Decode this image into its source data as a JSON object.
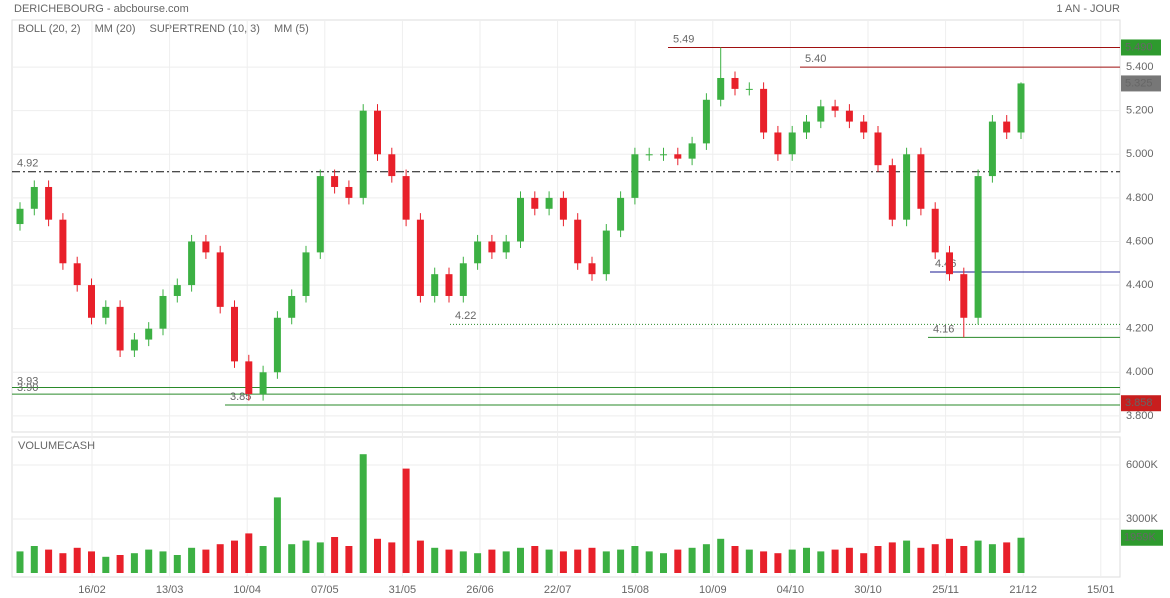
{
  "header": {
    "title": "DERICHEBOURG - abcbourse.com",
    "period": "1 AN - JOUR"
  },
  "chart_data": [
    {
      "type": "candlestick",
      "legend": [
        {
          "name": "BOLL (20, 2)",
          "color": "#f0a040"
        },
        {
          "name": "MM (20)",
          "color": "#d82020"
        },
        {
          "name": "SUPERTREND (10, 3)",
          "color": "#f4a0a8"
        },
        {
          "name": "MM (5)",
          "color": "#1a1aa0"
        }
      ],
      "dates": [
        "16/02",
        "13/03",
        "10/04",
        "07/05",
        "31/05",
        "26/06",
        "22/07",
        "15/08",
        "10/09",
        "04/10",
        "30/10",
        "25/11",
        "21/12",
        "15/01"
      ],
      "up_color": "#3cb043",
      "down_color": "#e8202a",
      "open": [
        4.68,
        4.75,
        4.85,
        4.7,
        4.5,
        4.4,
        4.25,
        4.3,
        4.1,
        4.15,
        4.2,
        4.35,
        4.4,
        4.6,
        4.55,
        4.3,
        4.05,
        3.9,
        4.0,
        4.25,
        4.35,
        4.55,
        4.9,
        4.85,
        4.8,
        5.2,
        5.0,
        4.9,
        4.7,
        4.35,
        4.45,
        4.35,
        4.5,
        4.6,
        4.55,
        4.6,
        4.8,
        4.75,
        4.8,
        4.7,
        4.5,
        4.45,
        4.65,
        4.8,
        5.0,
        5.0,
        5.0,
        4.98,
        5.05,
        5.25,
        5.35,
        5.3,
        5.3,
        5.1,
        5.0,
        5.1,
        5.15,
        5.22,
        5.2,
        5.15,
        5.1,
        4.95,
        4.7,
        5.0,
        4.75,
        4.55,
        4.45,
        4.25,
        4.9,
        5.15,
        5.1
      ],
      "high": [
        4.78,
        4.88,
        4.88,
        4.73,
        4.53,
        4.43,
        4.33,
        4.33,
        4.18,
        4.23,
        4.38,
        4.43,
        4.63,
        4.63,
        4.58,
        4.33,
        4.08,
        4.03,
        4.28,
        4.38,
        4.58,
        4.93,
        4.93,
        4.88,
        5.23,
        5.23,
        5.03,
        4.93,
        4.73,
        4.48,
        4.48,
        4.53,
        4.63,
        4.63,
        4.63,
        4.83,
        4.83,
        4.83,
        4.83,
        4.73,
        4.53,
        4.68,
        4.83,
        5.03,
        5.03,
        5.03,
        5.03,
        5.08,
        5.28,
        5.49,
        5.38,
        5.33,
        5.33,
        5.13,
        5.13,
        5.18,
        5.25,
        5.25,
        5.23,
        5.18,
        5.13,
        4.98,
        5.03,
        5.03,
        4.78,
        4.58,
        4.48,
        4.93,
        5.18,
        5.18,
        5.33
      ],
      "low": [
        4.65,
        4.72,
        4.67,
        4.47,
        4.37,
        4.22,
        4.22,
        4.07,
        4.07,
        4.12,
        4.17,
        4.32,
        4.37,
        4.52,
        4.27,
        4.02,
        3.87,
        3.87,
        3.97,
        4.22,
        4.32,
        4.52,
        4.82,
        4.77,
        4.77,
        4.97,
        4.87,
        4.67,
        4.32,
        4.32,
        4.32,
        4.32,
        4.47,
        4.52,
        4.52,
        4.57,
        4.72,
        4.72,
        4.67,
        4.47,
        4.42,
        4.42,
        4.62,
        4.77,
        4.97,
        4.97,
        4.95,
        4.95,
        5.02,
        5.22,
        5.27,
        5.27,
        5.07,
        4.97,
        4.97,
        5.07,
        5.12,
        5.17,
        5.12,
        5.07,
        4.92,
        4.67,
        4.67,
        4.72,
        4.52,
        4.42,
        4.16,
        4.22,
        4.87,
        5.07,
        5.07
      ],
      "close": [
        4.75,
        4.85,
        4.7,
        4.5,
        4.4,
        4.25,
        4.3,
        4.1,
        4.15,
        4.2,
        4.35,
        4.4,
        4.6,
        4.55,
        4.3,
        4.05,
        3.9,
        4.0,
        4.25,
        4.35,
        4.55,
        4.9,
        4.85,
        4.8,
        5.2,
        5.0,
        4.9,
        4.7,
        4.35,
        4.45,
        4.35,
        4.5,
        4.6,
        4.55,
        4.6,
        4.8,
        4.75,
        4.8,
        4.7,
        4.5,
        4.45,
        4.65,
        4.8,
        5.0,
        5.0,
        5.0,
        4.98,
        5.05,
        5.25,
        5.35,
        5.3,
        5.3,
        5.1,
        5.0,
        5.1,
        5.15,
        5.22,
        5.2,
        5.15,
        5.1,
        4.95,
        4.7,
        5.0,
        4.75,
        4.55,
        4.45,
        4.25,
        4.9,
        5.15,
        5.1,
        5.325
      ],
      "ylim": [
        3.726,
        5.616
      ],
      "yticks": [
        {
          "value": 5.4,
          "label": "5.400"
        },
        {
          "value": 5.2,
          "label": "5.200"
        },
        {
          "value": 5.0,
          "label": "5.000"
        },
        {
          "value": 4.8,
          "label": "4.800"
        },
        {
          "value": 4.6,
          "label": "4.600"
        },
        {
          "value": 4.4,
          "label": "4.400"
        },
        {
          "value": 4.2,
          "label": "4.200"
        },
        {
          "value": 4.0,
          "label": "4.000"
        },
        {
          "value": 3.8,
          "label": "3.800"
        }
      ],
      "levels": {
        "values": [
          5.49,
          5.4,
          4.92,
          4.46,
          4.22,
          4.16,
          3.93,
          3.9,
          3.85
        ],
        "value_labels": [
          "5.49",
          "5.40",
          "4.92",
          "4.46",
          "4.22",
          "4.16",
          "3.93",
          "3.90",
          "3.85"
        ],
        "colors": [
          "#a01010",
          "#a01010",
          "#111111",
          "#1a1a90",
          "#2a8a2a",
          "#2a8a2a",
          "#2a8a2a",
          "#2a8a2a",
          "#2a8a2a"
        ]
      },
      "tags": [
        {
          "value": 5.49,
          "label": "5.490",
          "color": "#2e9a2e"
        },
        {
          "value": 5.325,
          "label": "5.325",
          "color": "#777777"
        },
        {
          "value": 3.858,
          "label": "3.858",
          "color": "#c81e1e"
        }
      ]
    },
    {
      "type": "bar",
      "title": "VOLUMECASH",
      "title_color": "#3cb043",
      "values": [
        1200,
        1500,
        1300,
        1100,
        1400,
        1200,
        900,
        1000,
        1100,
        1300,
        1200,
        1000,
        1400,
        1300,
        1600,
        1800,
        2200,
        1500,
        4200,
        1600,
        1800,
        1700,
        2000,
        1500,
        6600,
        1900,
        1700,
        5800,
        1800,
        1400,
        1300,
        1200,
        1100,
        1300,
        1200,
        1400,
        1500,
        1300,
        1200,
        1300,
        1400,
        1200,
        1300,
        1500,
        1200,
        1100,
        1300,
        1400,
        1600,
        1900,
        1500,
        1300,
        1200,
        1100,
        1300,
        1400,
        1200,
        1300,
        1400,
        1100,
        1500,
        1700,
        1800,
        1400,
        1600,
        1900,
        1500,
        1800,
        1600,
        1700,
        1959
      ],
      "ylim": [
        0,
        7556
      ],
      "yticks": [
        {
          "value": 6000,
          "label": "6000K"
        },
        {
          "value": 3000,
          "label": "3000K"
        }
      ],
      "tag": {
        "value": 1959,
        "label": "1959K",
        "color": "#2e9a2e"
      }
    }
  ]
}
